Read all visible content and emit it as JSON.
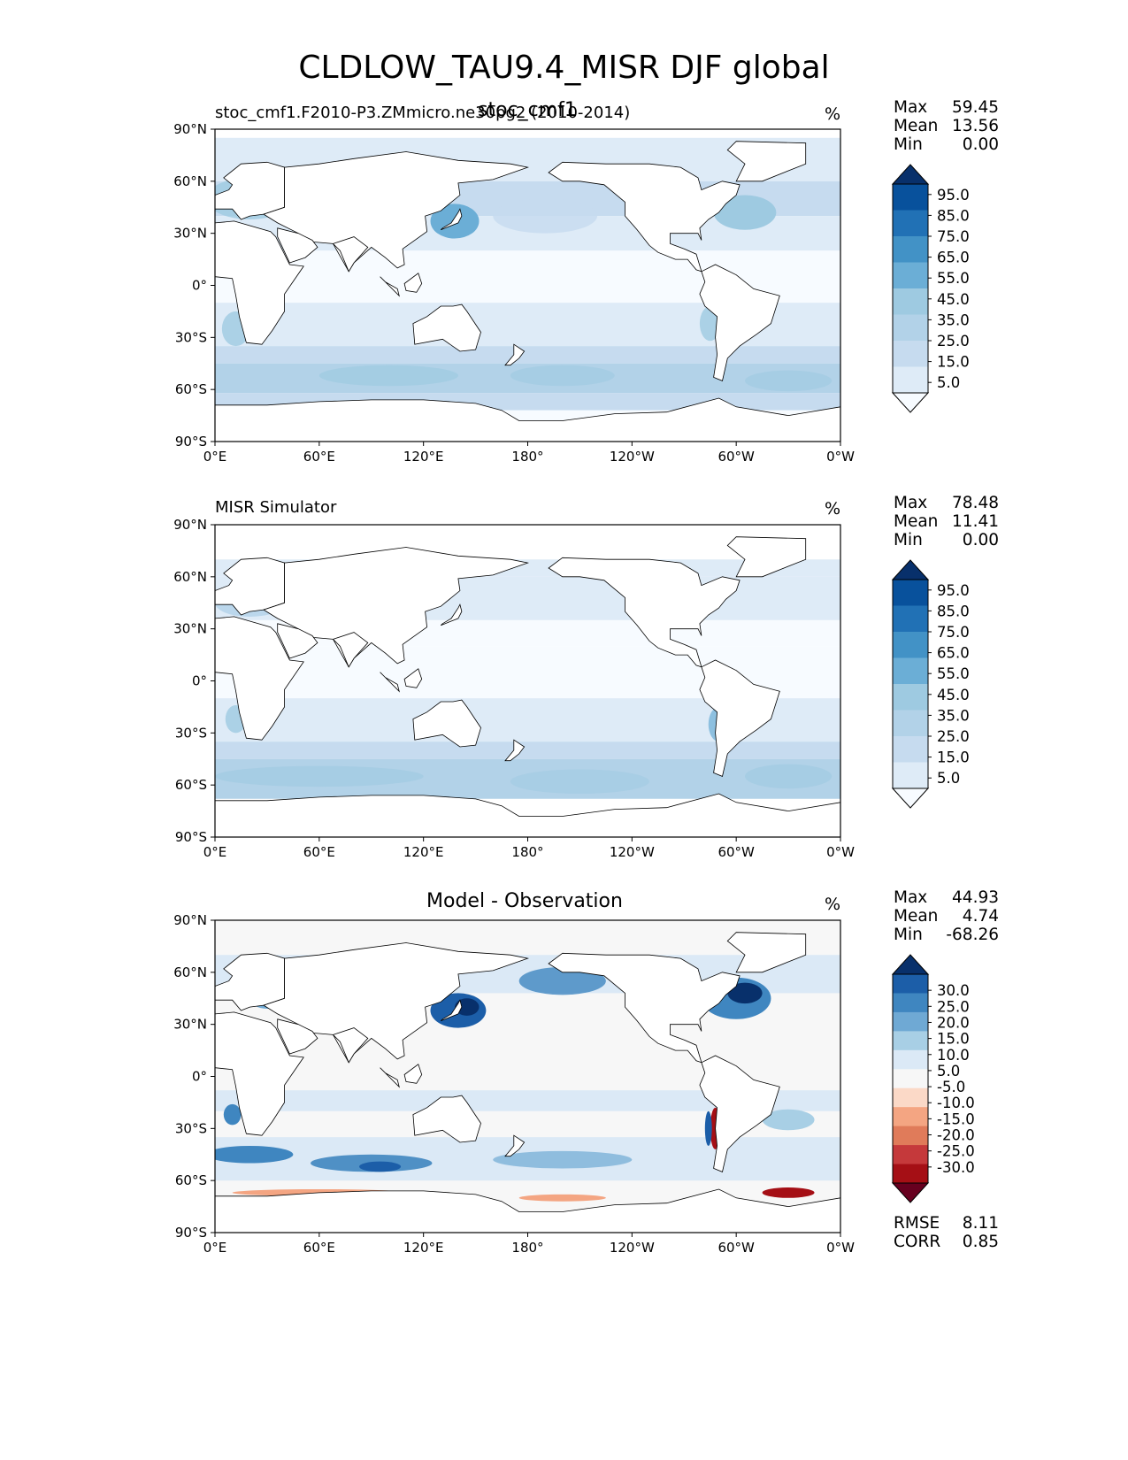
{
  "figure": {
    "title": "CLDLOW_TAU9.4_MISR DJF global"
  },
  "colors": {
    "blues": [
      "#f7fbff",
      "#deebf7",
      "#c6dbef",
      "#b2d2e8",
      "#9ecae1",
      "#6baed6",
      "#4292c6",
      "#2171b5",
      "#08519c",
      "#08306b"
    ],
    "diverging": [
      "#67001f",
      "#a50f15",
      "#c5393b",
      "#e07b5a",
      "#f4a582",
      "#fbd9c7",
      "#f7f7f7",
      "#dbe9f6",
      "#a8cfe5",
      "#6fa9d4",
      "#3f86c0",
      "#1c5ea8",
      "#08306b"
    ],
    "ocean_blue": "#c9ddf0",
    "land_outline": "#000000"
  },
  "chart_data": [
    {
      "type": "heatmap",
      "panel": "test",
      "left_title": "stoc_cmf1.F2010-P3.ZMmicro.ne30pg2 (2010-2014)",
      "center_title": "stoc_cmf1",
      "units": "%",
      "stats": {
        "max_label": "Max",
        "max": "59.45",
        "mean_label": "Mean",
        "mean": "13.56",
        "min_label": "Min",
        "min": "0.00"
      },
      "colorbar_levels": [
        5,
        15,
        25,
        35,
        45,
        55,
        65,
        75,
        85,
        95
      ],
      "colorbar_tick_labels": [
        "5.0",
        "15.0",
        "25.0",
        "35.0",
        "45.0",
        "55.0",
        "65.0",
        "75.0",
        "85.0",
        "95.0"
      ],
      "x_ticks": [
        "0°E",
        "60°E",
        "120°E",
        "180°",
        "120°W",
        "60°W",
        "0°W"
      ],
      "y_ticks": [
        "90°N",
        "60°N",
        "30°N",
        "0°",
        "30°S",
        "60°S",
        "90°S"
      ],
      "xlim": [
        0,
        360
      ],
      "ylim": [
        -90,
        90
      ]
    },
    {
      "type": "heatmap",
      "panel": "reference",
      "left_title": "MISR Simulator",
      "center_title": "",
      "units": "%",
      "stats": {
        "max_label": "Max",
        "max": "78.48",
        "mean_label": "Mean",
        "mean": "11.41",
        "min_label": "Min",
        "min": "0.00"
      },
      "colorbar_levels": [
        5,
        15,
        25,
        35,
        45,
        55,
        65,
        75,
        85,
        95
      ],
      "colorbar_tick_labels": [
        "5.0",
        "15.0",
        "25.0",
        "35.0",
        "45.0",
        "55.0",
        "65.0",
        "75.0",
        "85.0",
        "95.0"
      ],
      "x_ticks": [
        "0°E",
        "60°E",
        "120°E",
        "180°",
        "120°W",
        "60°W",
        "0°W"
      ],
      "y_ticks": [
        "90°N",
        "60°N",
        "30°N",
        "0°",
        "30°S",
        "60°S",
        "90°S"
      ],
      "xlim": [
        0,
        360
      ],
      "ylim": [
        -90,
        90
      ]
    },
    {
      "type": "heatmap",
      "panel": "difference",
      "left_title": "",
      "center_title": "Model - Observation",
      "units": "%",
      "stats": {
        "max_label": "Max",
        "max": "44.93",
        "mean_label": "Mean",
        "mean": "4.74",
        "min_label": "Min",
        "min": "-68.26"
      },
      "colorbar_levels": [
        -30,
        -25,
        -20,
        -15,
        -10,
        -5,
        5,
        10,
        15,
        20,
        25,
        30
      ],
      "colorbar_tick_labels": [
        "-30.0",
        "-25.0",
        "-20.0",
        "-15.0",
        "-10.0",
        "-5.0",
        "5.0",
        "10.0",
        "15.0",
        "20.0",
        "25.0",
        "30.0"
      ],
      "x_ticks": [
        "0°E",
        "60°E",
        "120°E",
        "180°",
        "120°W",
        "60°W",
        "0°W"
      ],
      "y_ticks": [
        "90°N",
        "60°N",
        "30°N",
        "0°",
        "30°S",
        "60°S",
        "90°S"
      ],
      "xlim": [
        0,
        360
      ],
      "ylim": [
        -90,
        90
      ],
      "metrics": {
        "rmse_label": "RMSE",
        "rmse": "8.11",
        "corr_label": "CORR",
        "corr": "0.85"
      }
    }
  ]
}
